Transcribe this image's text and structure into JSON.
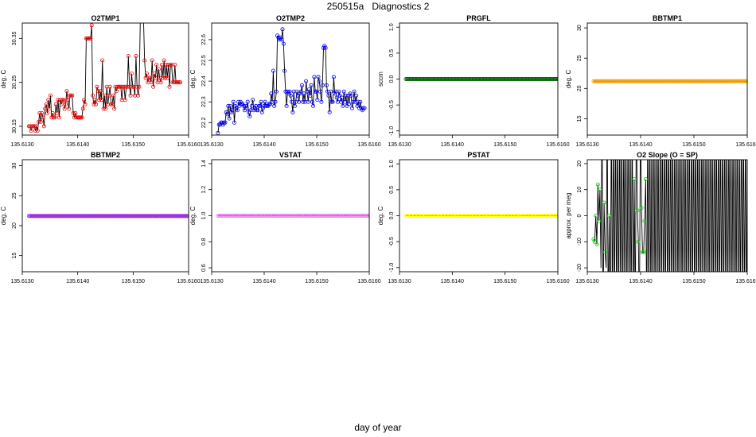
{
  "page": {
    "title": "250515a   Diagnostics 2",
    "xlabel": "day of year"
  },
  "chart_data": [
    {
      "type": "line",
      "title": "O2TMP1",
      "ylabel": "deg. C",
      "color": "#ff0000",
      "xlim": [
        135.613,
        135.616
      ],
      "ylim": [
        30.13,
        30.385
      ],
      "yticks": [
        "30.15",
        "30.25",
        "30.35"
      ],
      "xticks": [
        "135.6130",
        "135.6140",
        "135.6150",
        "135.6160"
      ],
      "series": [
        {
          "x_start": 135.61312,
          "x_step": 1.95e-05,
          "values": [
            30.15,
            30.15,
            30.14,
            30.15,
            30.15,
            30.15,
            30.14,
            30.15,
            30.14,
            30.16,
            30.18,
            30.16,
            30.18,
            30.17,
            30.15,
            30.19,
            30.2,
            30.18,
            30.21,
            30.19,
            30.22,
            30.17,
            30.18,
            30.17,
            30.17,
            30.2,
            30.18,
            30.21,
            30.17,
            30.21,
            30.2,
            30.21,
            30.21,
            30.19,
            30.2,
            30.23,
            30.21,
            30.19,
            30.22,
            30.22,
            30.22,
            30.18,
            30.17,
            30.18,
            30.17,
            30.17,
            30.17,
            30.17,
            30.17,
            30.17,
            30.19,
            30.21,
            30.2,
            30.35,
            30.35,
            30.35,
            30.35,
            30.35,
            30.38,
            30.22,
            30.2,
            30.21,
            30.2,
            30.24,
            30.23,
            30.21,
            30.23,
            30.21,
            30.3,
            30.19,
            30.22,
            30.19,
            30.24,
            30.2,
            30.22,
            30.24,
            30.2,
            30.2,
            30.22,
            30.19,
            30.24,
            30.23,
            30.24,
            30.24,
            30.24,
            30.24,
            30.21,
            30.24,
            30.24,
            30.21,
            30.24,
            30.24,
            30.31,
            30.24,
            30.22,
            30.27,
            30.24,
            30.24,
            30.22,
            30.31,
            30.24,
            30.22,
            30.24,
            30.39,
            30.39,
            30.39,
            30.39,
            30.3,
            30.26,
            30.27,
            30.25,
            30.26,
            30.26,
            30.25,
            30.3,
            30.24,
            30.27,
            30.26,
            30.29,
            30.25,
            30.28,
            30.26,
            30.25,
            30.29,
            30.26,
            30.3,
            30.26,
            30.29,
            30.26,
            30.29,
            30.24,
            30.29,
            30.29,
            30.25,
            30.25,
            30.29,
            30.25,
            30.25,
            30.25,
            30.25,
            30.25
          ]
        }
      ]
    },
    {
      "type": "line",
      "title": "O2TMP2",
      "ylabel": "deg. C",
      "color": "#0000ff",
      "xlim": [
        135.613,
        135.616
      ],
      "ylim": [
        22.14,
        22.68
      ],
      "yticks": [
        "22.2",
        "22.3",
        "22.4",
        "22.5",
        "22.6"
      ],
      "xticks": [
        "135.6130",
        "135.6140",
        "135.6150",
        "135.6160"
      ],
      "series": [
        {
          "x_start": 135.61312,
          "x_step": 1.95e-05,
          "values": [
            22.15,
            22.19,
            22.19,
            22.2,
            22.2,
            22.19,
            22.2,
            22.2,
            22.25,
            22.24,
            22.28,
            22.22,
            22.28,
            22.25,
            22.26,
            22.3,
            22.2,
            22.28,
            22.27,
            22.26,
            22.3,
            22.28,
            22.3,
            22.29,
            22.29,
            22.28,
            22.26,
            22.28,
            22.27,
            22.3,
            22.25,
            22.23,
            22.26,
            22.28,
            22.31,
            22.26,
            22.27,
            22.28,
            22.26,
            22.26,
            22.28,
            22.28,
            22.3,
            22.25,
            22.27,
            22.28,
            22.3,
            22.28,
            22.28,
            22.28,
            22.29,
            22.29,
            22.34,
            22.3,
            22.45,
            22.28,
            22.3,
            22.35,
            22.62,
            22.61,
            22.6,
            22.61,
            22.6,
            22.65,
            22.58,
            22.45,
            22.35,
            22.28,
            22.35,
            22.34,
            22.35,
            22.33,
            22.3,
            22.25,
            22.35,
            22.28,
            22.3,
            22.35,
            22.33,
            22.3,
            22.34,
            22.35,
            22.38,
            22.3,
            22.34,
            22.3,
            22.4,
            22.35,
            22.3,
            22.36,
            22.33,
            22.38,
            22.3,
            22.28,
            22.42,
            22.35,
            22.35,
            22.31,
            22.42,
            22.4,
            22.35,
            22.3,
            22.38,
            22.56,
            22.57,
            22.56,
            22.38,
            22.35,
            22.33,
            22.25,
            22.35,
            22.3,
            22.3,
            22.42,
            22.34,
            22.35,
            22.32,
            22.3,
            22.35,
            22.33,
            22.3,
            22.32,
            22.28,
            22.35,
            22.3,
            22.33,
            22.28,
            22.33,
            22.29,
            22.34,
            22.33,
            22.27,
            22.3,
            22.35,
            22.3,
            22.33,
            22.28,
            22.3,
            22.27,
            22.3,
            22.27,
            22.26,
            22.27,
            22.27
          ]
        }
      ]
    },
    {
      "type": "line",
      "title": "PRGFL",
      "ylabel": "sccm",
      "color": "#006400",
      "xlim": [
        135.613,
        135.616
      ],
      "ylim": [
        -1.08,
        1.08
      ],
      "yticks": [
        "-1.0",
        "-0.5",
        "0.0",
        "0.5",
        "1.0"
      ],
      "xticks": [
        "135.6130",
        "135.6140",
        "135.6150",
        "135.6160"
      ],
      "series": [
        {
          "x_start": 135.61312,
          "x_step": 1.95e-05,
          "constant": 0.0,
          "count": 155
        }
      ]
    },
    {
      "type": "line",
      "title": "BBTMP1",
      "ylabel": "deg. C",
      "color": "#ffa500",
      "xlim": [
        135.613,
        135.616
      ],
      "ylim": [
        12.3,
        30.8
      ],
      "yticks": [
        "15",
        "20",
        "25",
        "30"
      ],
      "xticks": [
        "135.6130",
        "135.6140",
        "135.6150",
        "135.6160"
      ],
      "series": [
        {
          "x_start": 135.61312,
          "x_step": 1.95e-05,
          "constant": 21.2,
          "count": 155
        }
      ]
    },
    {
      "type": "line",
      "title": "BBTMP2",
      "ylabel": "deg. C",
      "color": "#a020f0",
      "xlim": [
        135.613,
        135.616
      ],
      "ylim": [
        12.3,
        31.0
      ],
      "yticks": [
        "15",
        "20",
        "25",
        "30"
      ],
      "xticks": [
        "135.6130",
        "135.6140",
        "135.6150",
        "135.6160"
      ],
      "series": [
        {
          "x_start": 135.61312,
          "x_step": 1.95e-05,
          "constant": 21.6,
          "count": 155
        }
      ]
    },
    {
      "type": "line",
      "title": "VSTAT",
      "ylabel": "deg. C",
      "color": "#ee82ee",
      "xlim": [
        135.613,
        135.616
      ],
      "ylim": [
        0.57,
        1.43
      ],
      "yticks": [
        "0.6",
        "0.8",
        "1.0",
        "1.2",
        "1.4"
      ],
      "xticks": [
        "135.6130",
        "135.6140",
        "135.6150",
        "135.6160"
      ],
      "series": [
        {
          "x_start": 135.61312,
          "x_step": 1.95e-05,
          "constant": 1.0,
          "count": 155
        }
      ]
    },
    {
      "type": "line",
      "title": "PSTAT",
      "ylabel": "deg. C",
      "color": "#ffff00",
      "xlim": [
        135.613,
        135.616
      ],
      "ylim": [
        -1.08,
        1.08
      ],
      "yticks": [
        "-1.0",
        "-0.5",
        "0.0",
        "0.5",
        "1.0"
      ],
      "xticks": [
        "135.6130",
        "135.6140",
        "135.6150",
        "135.6160"
      ],
      "series": [
        {
          "x_start": 135.61312,
          "x_step": 1.95e-05,
          "constant": 0.0,
          "count": 155
        }
      ]
    },
    {
      "type": "line",
      "title": "O2 Slope (O = SP)",
      "ylabel": "approx. per meg",
      "color": "#00cc00",
      "xlim": [
        135.613,
        135.616
      ],
      "ylim": [
        -21.5,
        21.5
      ],
      "yticks": [
        "-20",
        "-10",
        "0",
        "10",
        "20"
      ],
      "xticks": [
        "135.6130",
        "135.6140",
        "135.6150",
        "135.6160"
      ],
      "series": [
        {
          "x_start": 135.61312,
          "x_step": 1.95e-05,
          "values": [
            -9,
            -10,
            0,
            -11,
            12,
            -2,
            10,
            -20,
            40,
            -40,
            5,
            -14,
            -20,
            40,
            -40,
            0,
            -40,
            40,
            -40,
            40,
            -40,
            40,
            -40,
            40,
            -40,
            40,
            -40,
            40,
            -40,
            40,
            -40,
            40,
            -40,
            40,
            -40,
            40,
            -40,
            40,
            -40,
            14,
            -40,
            40,
            2,
            -10,
            -40,
            40,
            3,
            -14,
            -14,
            -2,
            14,
            -40,
            40,
            -40,
            40,
            -40,
            40,
            -40,
            40,
            -40,
            40,
            -40,
            40,
            -40,
            40,
            -40,
            40,
            -40,
            40,
            -40,
            40,
            -40,
            40,
            -40,
            40,
            -40,
            40,
            -40,
            40,
            -40,
            40,
            -40,
            40,
            -40,
            40,
            -40,
            40,
            -40,
            40,
            -40,
            40,
            -40,
            40,
            -40,
            40,
            -40,
            40,
            -40,
            40,
            -40,
            40,
            -40,
            40,
            -40,
            40,
            -40,
            40,
            -40,
            40,
            -40,
            40,
            -40,
            40,
            -40,
            40,
            -40,
            40,
            -40,
            40,
            -40,
            40,
            -40,
            40,
            -40,
            40,
            -40,
            40,
            -40,
            40,
            -40,
            40,
            -40,
            40,
            -40,
            40,
            -40,
            40,
            -40,
            40,
            -40,
            40,
            -40,
            40,
            -40,
            40,
            -40,
            40,
            -40,
            40,
            -40,
            40,
            7
          ],
          "markers": [
            [
              0,
              -9
            ],
            [
              1,
              -10
            ],
            [
              2,
              0
            ],
            [
              3,
              -11
            ],
            [
              4,
              12
            ],
            [
              5,
              -2
            ],
            [
              6,
              10
            ],
            [
              10,
              5
            ],
            [
              11,
              -14
            ],
            [
              15,
              0
            ],
            [
              39,
              14
            ],
            [
              42,
              2
            ],
            [
              43,
              -10
            ],
            [
              46,
              3
            ],
            [
              47,
              -14
            ],
            [
              48,
              -14
            ],
            [
              49,
              -2
            ],
            [
              50,
              14
            ],
            [
              154,
              7
            ]
          ]
        }
      ]
    }
  ]
}
